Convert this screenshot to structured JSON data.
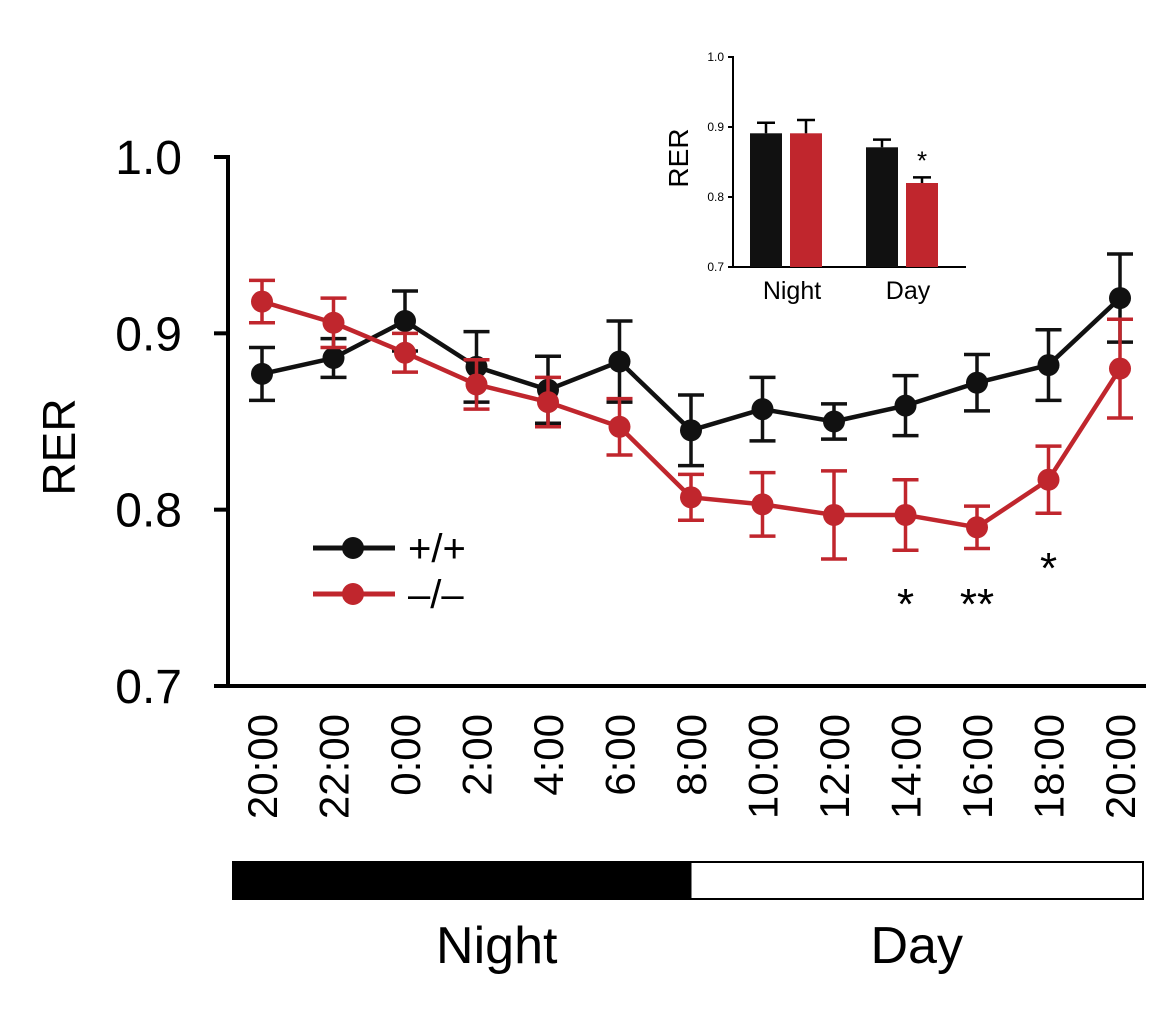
{
  "chart_data": [
    {
      "type": "line",
      "ylabel": "RER",
      "xlabel": "",
      "ylim": [
        0.7,
        1.0
      ],
      "yticks": [
        0.7,
        0.8,
        0.9,
        1.0
      ],
      "ytick_labels": [
        "0.7",
        "0.8",
        "0.9",
        "1.0"
      ],
      "categories": [
        "20:00",
        "22:00",
        "0:00",
        "2:00",
        "4:00",
        "6:00",
        "8:00",
        "10:00",
        "12:00",
        "14:00",
        "16:00",
        "18:00",
        "20:00"
      ],
      "series": [
        {
          "name": "+/+",
          "color": "#111111",
          "values": [
            0.877,
            0.886,
            0.907,
            0.881,
            0.868,
            0.884,
            0.845,
            0.857,
            0.85,
            0.859,
            0.872,
            0.882,
            0.92
          ],
          "errors": [
            0.015,
            0.011,
            0.017,
            0.02,
            0.019,
            0.023,
            0.02,
            0.018,
            0.01,
            0.017,
            0.016,
            0.02,
            0.025
          ]
        },
        {
          "name": "–/–",
          "color": "#c0262d",
          "values": [
            0.918,
            0.906,
            0.889,
            0.871,
            0.861,
            0.847,
            0.807,
            0.803,
            0.797,
            0.797,
            0.79,
            0.817,
            0.88
          ],
          "errors": [
            0.012,
            0.014,
            0.011,
            0.014,
            0.014,
            0.016,
            0.013,
            0.018,
            0.025,
            0.02,
            0.012,
            0.019,
            0.028
          ]
        }
      ],
      "significance": [
        {
          "category_index": 9,
          "label": "*"
        },
        {
          "category_index": 10,
          "label": "**"
        },
        {
          "category_index": 11,
          "label": "*"
        }
      ],
      "phase_bar": [
        {
          "label": "Night",
          "fill": "#000000",
          "from_index": 0,
          "to_index": 6
        },
        {
          "label": "Day",
          "fill": "#ffffff",
          "from_index": 6,
          "to_index": 12
        }
      ],
      "legend_position": "lower-left",
      "grid": false
    },
    {
      "type": "bar",
      "ylabel": "RER",
      "xlabel": "",
      "ylim": [
        0.7,
        1.0
      ],
      "yticks": [
        0.7,
        0.8,
        0.9,
        1.0
      ],
      "ytick_labels": [
        "0.7",
        "0.8",
        "0.9",
        "1.0"
      ],
      "categories": [
        "Night",
        "Day"
      ],
      "series": [
        {
          "name": "+/+",
          "color": "#111111",
          "values": [
            0.891,
            0.871
          ],
          "errors": [
            0.015,
            0.011
          ]
        },
        {
          "name": "–/–",
          "color": "#c0262d",
          "values": [
            0.891,
            0.82
          ],
          "errors": [
            0.019,
            0.008
          ]
        }
      ],
      "significance": [
        {
          "category_index": 1,
          "series_index": 1,
          "label": "*"
        }
      ],
      "grid": false
    }
  ]
}
